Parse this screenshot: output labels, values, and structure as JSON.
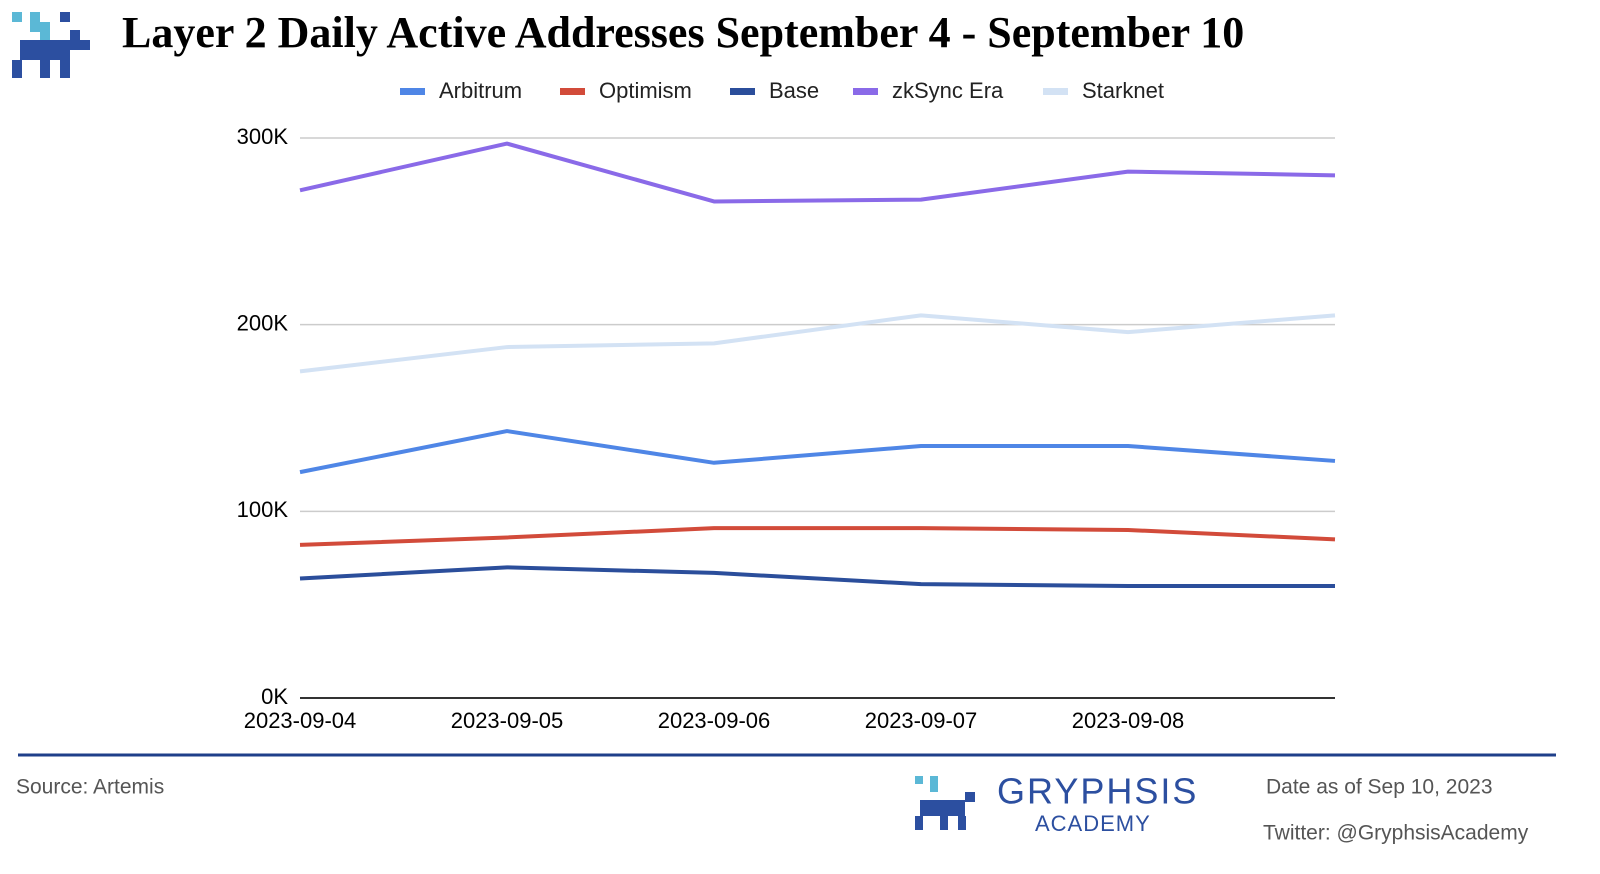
{
  "chart_data": {
    "type": "line",
    "title": "Layer 2 Daily Active Addresses September 4 - September 10",
    "categories": [
      "2023-09-04",
      "2023-09-05",
      "2023-09-06",
      "2023-09-07",
      "2023-09-08",
      null
    ],
    "series": [
      {
        "name": "Arbitrum",
        "color": "#4f86e6",
        "values": [
          121000,
          143000,
          126000,
          135000,
          135000,
          127000
        ]
      },
      {
        "name": "Optimism",
        "color": "#d24b3a",
        "values": [
          82000,
          86000,
          91000,
          91000,
          90000,
          85000
        ]
      },
      {
        "name": "Base",
        "color": "#2b4e9b",
        "values": [
          64000,
          70000,
          67000,
          61000,
          60000,
          60000
        ]
      },
      {
        "name": "zkSync Era",
        "color": "#8a6ae8",
        "values": [
          272000,
          297000,
          266000,
          267000,
          282000,
          280000
        ]
      },
      {
        "name": "Starknet",
        "color": "#d3e2f4",
        "values": [
          175000,
          188000,
          190000,
          205000,
          196000,
          205000
        ]
      }
    ],
    "ylim": [
      0,
      300000
    ],
    "yticks": [
      {
        "value": 0,
        "label": "0K"
      },
      {
        "value": 100000,
        "label": "100K"
      },
      {
        "value": 200000,
        "label": "200K"
      },
      {
        "value": 300000,
        "label": "300K"
      }
    ],
    "grid": true,
    "legend": "top"
  },
  "footer": {
    "source": "Source: Artemis",
    "brand": "GRYPHSIS",
    "brand_sub": "ACADEMY",
    "date": "Date as of  Sep 10, 2023",
    "twitter": "Twitter: @GryphsisAcademy"
  }
}
